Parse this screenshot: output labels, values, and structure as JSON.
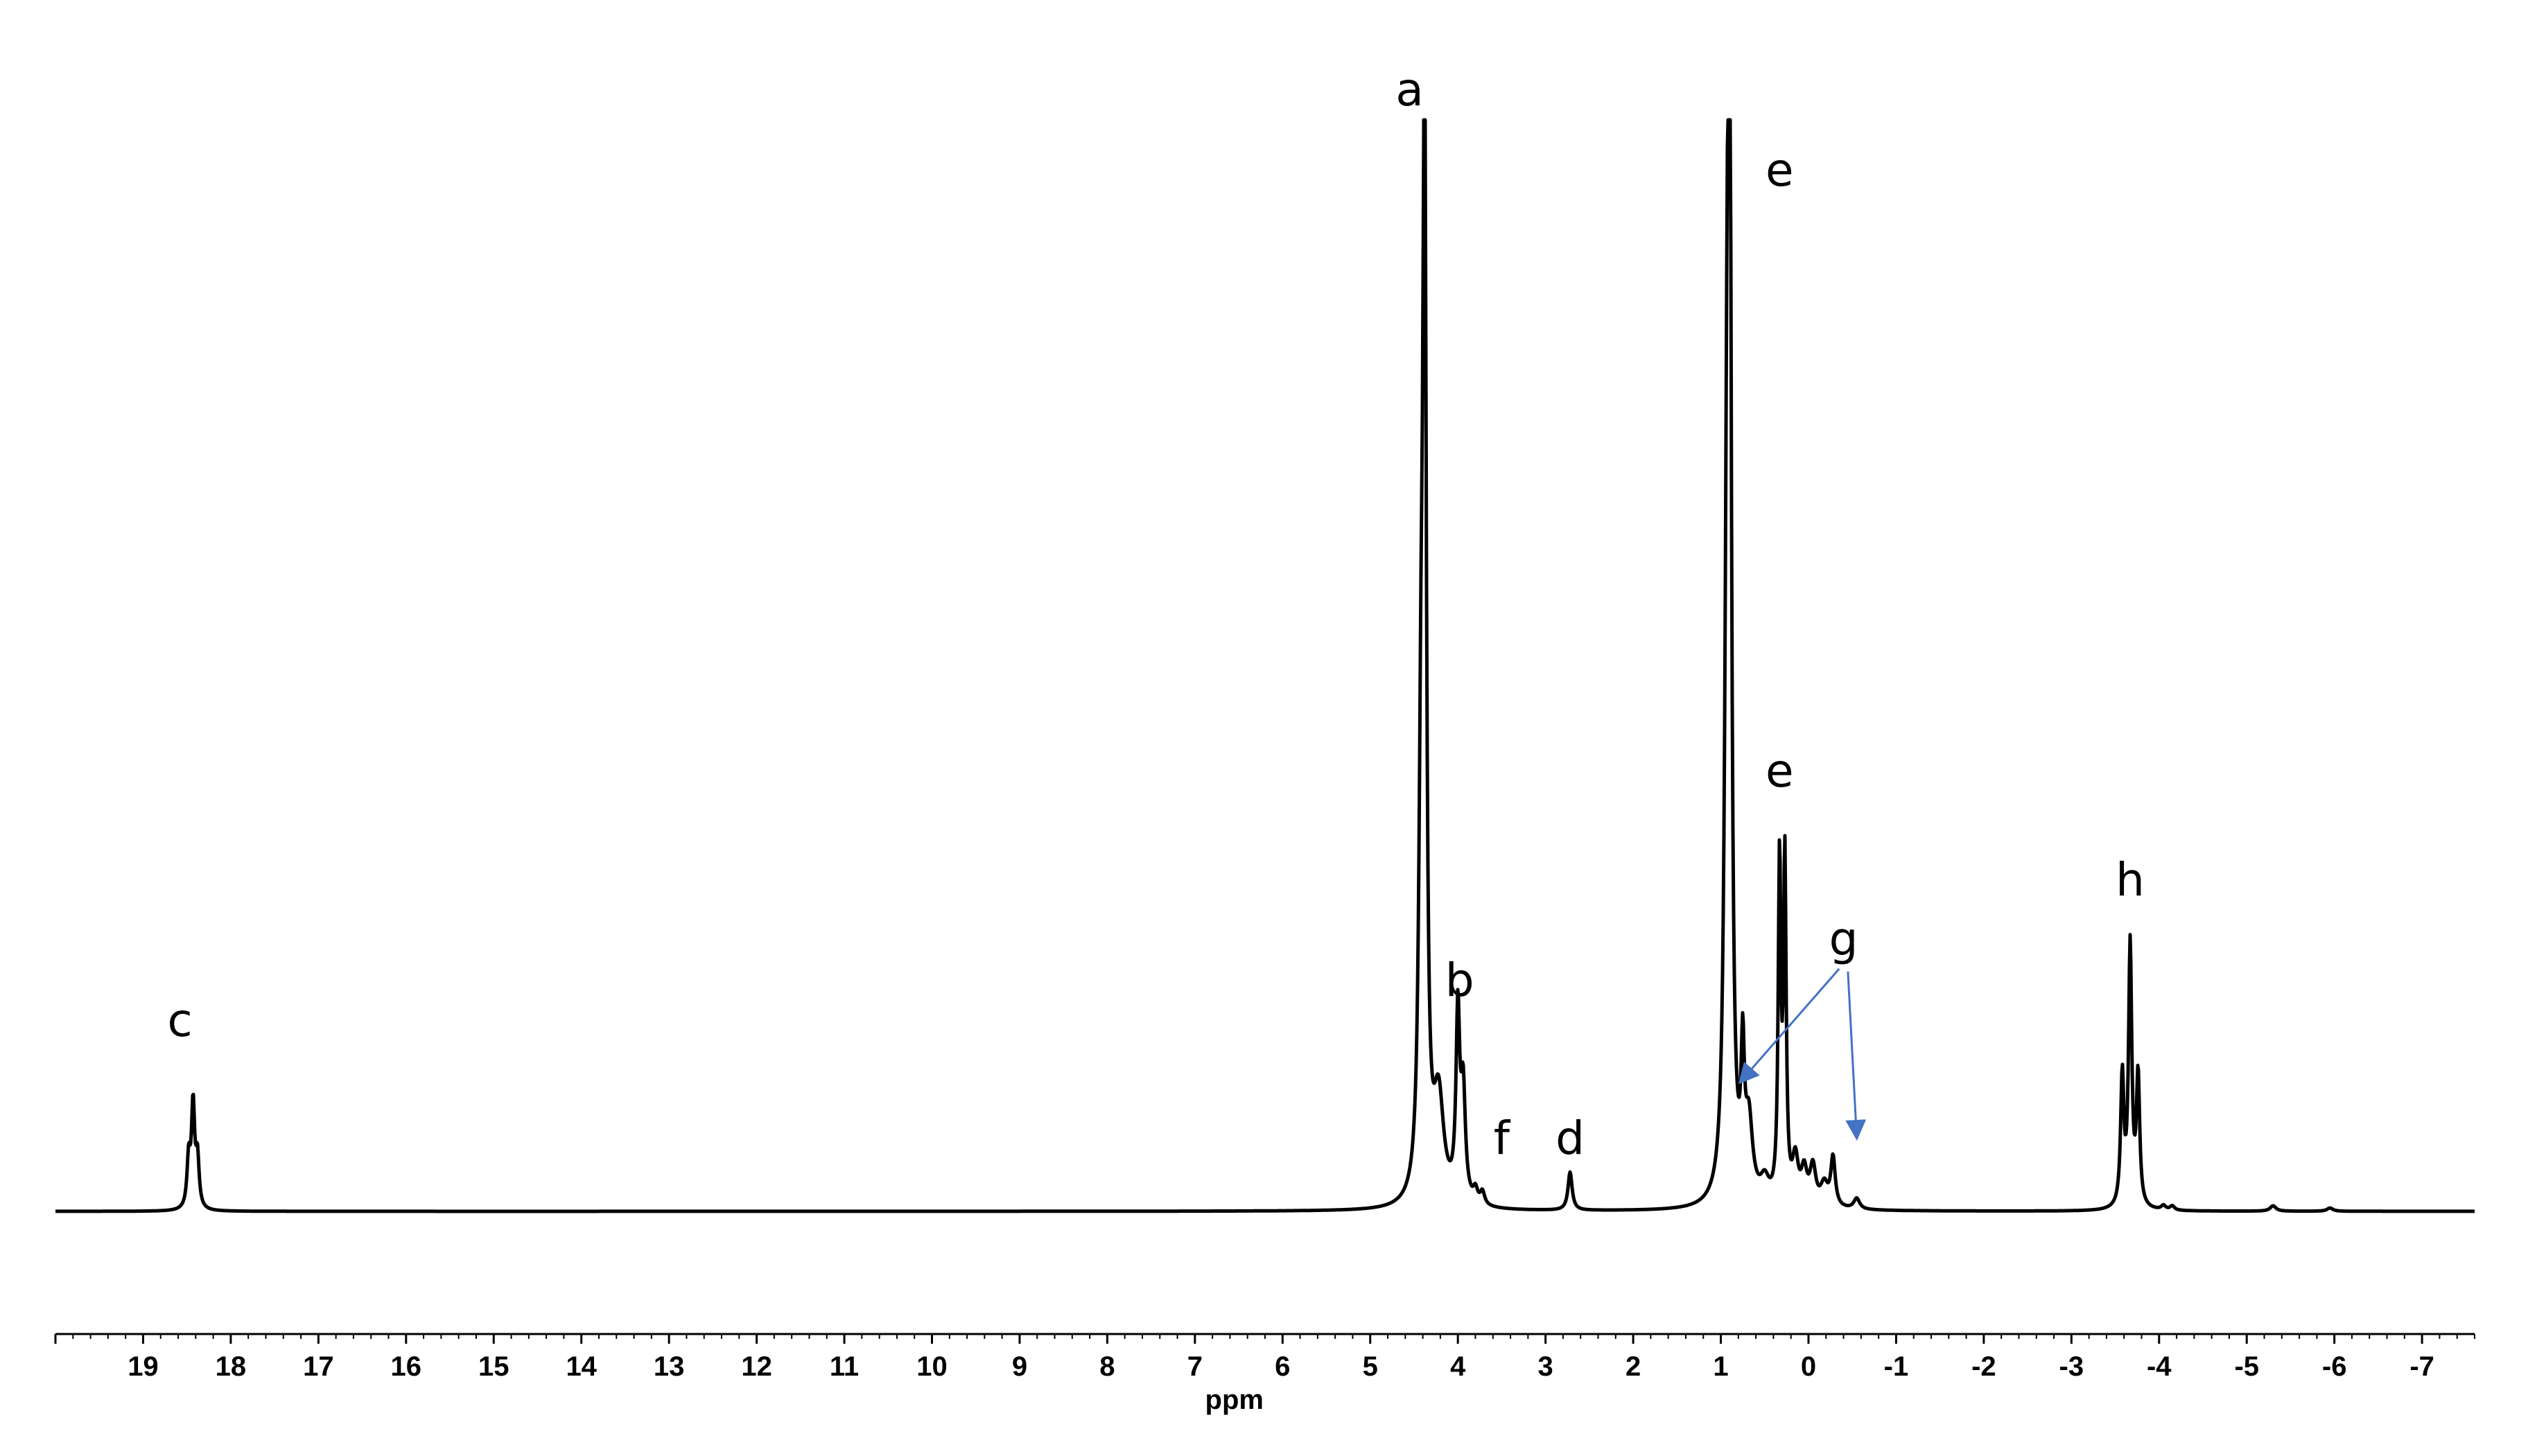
{
  "chart_data": {
    "type": "line",
    "title": "",
    "xlabel": "ppm",
    "ylabel": "",
    "xlim": [
      20,
      -7.6
    ],
    "x_reversed": true,
    "grid": false,
    "legend": "none",
    "line_color": "#000000",
    "arrow_color": "#4472C4",
    "tick_labels": [
      "19",
      "18",
      "17",
      "16",
      "15",
      "14",
      "13",
      "12",
      "11",
      "10",
      "9",
      "8",
      "7",
      "6",
      "5",
      "4",
      "3",
      "2",
      "1",
      "0",
      "-1",
      "-2",
      "-3",
      "-4",
      "-5",
      "-6",
      "-7"
    ],
    "peaks": [
      {
        "ppm": 18.48,
        "height": 0.045,
        "width": 0.022
      },
      {
        "ppm": 18.43,
        "height": 0.095,
        "width": 0.022
      },
      {
        "ppm": 18.38,
        "height": 0.045,
        "width": 0.022
      },
      {
        "ppm": 4.38,
        "height": 1.0,
        "width": 0.022
      },
      {
        "ppm": 4.42,
        "height": 0.35,
        "width": 0.03
      },
      {
        "ppm": 4.22,
        "height": 0.095,
        "width": 0.07
      },
      {
        "ppm": 4.0,
        "height": 0.17,
        "width": 0.025
      },
      {
        "ppm": 3.94,
        "height": 0.1,
        "width": 0.03
      },
      {
        "ppm": 3.8,
        "height": 0.012,
        "width": 0.03
      },
      {
        "ppm": 3.72,
        "height": 0.012,
        "width": 0.03
      },
      {
        "ppm": 2.72,
        "height": 0.035,
        "width": 0.028
      },
      {
        "ppm": 0.9,
        "height": 1.0,
        "width": 0.022
      },
      {
        "ppm": 0.93,
        "height": 0.55,
        "width": 0.03
      },
      {
        "ppm": 0.75,
        "height": 0.12,
        "width": 0.022
      },
      {
        "ppm": 0.68,
        "height": 0.07,
        "width": 0.05
      },
      {
        "ppm": 0.5,
        "height": 0.02,
        "width": 0.06
      },
      {
        "ppm": 0.33,
        "height": 0.31,
        "width": 0.018
      },
      {
        "ppm": 0.27,
        "height": 0.31,
        "width": 0.018
      },
      {
        "ppm": 0.15,
        "height": 0.04,
        "width": 0.04
      },
      {
        "ppm": 0.05,
        "height": 0.03,
        "width": 0.04
      },
      {
        "ppm": -0.05,
        "height": 0.035,
        "width": 0.04
      },
      {
        "ppm": -0.18,
        "height": 0.02,
        "width": 0.05
      },
      {
        "ppm": -0.28,
        "height": 0.045,
        "width": 0.03
      },
      {
        "ppm": -0.55,
        "height": 0.01,
        "width": 0.04
      },
      {
        "ppm": -3.58,
        "height": 0.12,
        "width": 0.022
      },
      {
        "ppm": -3.67,
        "height": 0.24,
        "width": 0.022
      },
      {
        "ppm": -3.76,
        "height": 0.12,
        "width": 0.022
      },
      {
        "ppm": -4.05,
        "height": 0.004,
        "width": 0.03
      },
      {
        "ppm": -4.15,
        "height": 0.004,
        "width": 0.03
      },
      {
        "ppm": -5.3,
        "height": 0.005,
        "width": 0.04
      },
      {
        "ppm": -5.95,
        "height": 0.003,
        "width": 0.04
      }
    ],
    "annotations": [
      {
        "label": "a",
        "ppm": 4.55
      },
      {
        "label": "e",
        "ppm": 0.33
      },
      {
        "label": "e",
        "ppm": 0.33
      },
      {
        "label": "h",
        "ppm": -3.67
      },
      {
        "label": "g",
        "ppm": -0.4
      },
      {
        "label": "b",
        "ppm": 3.98
      },
      {
        "label": "c",
        "ppm": 18.58
      },
      {
        "label": "f",
        "ppm": 3.5
      },
      {
        "label": "d",
        "ppm": 2.72
      }
    ]
  }
}
